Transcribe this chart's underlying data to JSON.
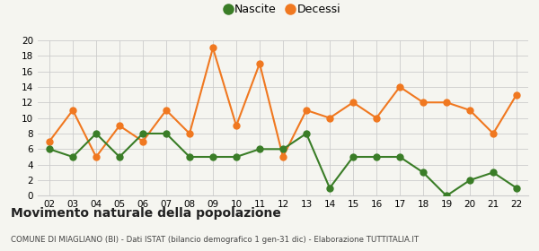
{
  "years": [
    "02",
    "03",
    "04",
    "05",
    "06",
    "07",
    "08",
    "09",
    "10",
    "11",
    "12",
    "13",
    "14",
    "15",
    "16",
    "17",
    "18",
    "19",
    "20",
    "21",
    "22"
  ],
  "nascite": [
    6,
    5,
    8,
    5,
    8,
    8,
    5,
    5,
    5,
    6,
    6,
    8,
    1,
    5,
    5,
    5,
    3,
    0,
    2,
    3,
    1
  ],
  "decessi": [
    7,
    11,
    5,
    9,
    7,
    11,
    8,
    19,
    9,
    17,
    5,
    11,
    10,
    12,
    10,
    14,
    12,
    12,
    11,
    8,
    13
  ],
  "nascite_color": "#3a7d27",
  "decessi_color": "#f07820",
  "background_color": "#f5f5f0",
  "grid_color": "#cccccc",
  "ylim": [
    0,
    20
  ],
  "yticks": [
    0,
    2,
    4,
    6,
    8,
    10,
    12,
    14,
    16,
    18,
    20
  ],
  "title": "Movimento naturale della popolazione",
  "subtitle": "COMUNE DI MIAGLIANO (BI) - Dati ISTAT (bilancio demografico 1 gen-31 dic) - Elaborazione TUTTITALIA.IT",
  "legend_nascite": "Nascite",
  "legend_decessi": "Decessi",
  "marker_size": 5,
  "line_width": 1.5
}
